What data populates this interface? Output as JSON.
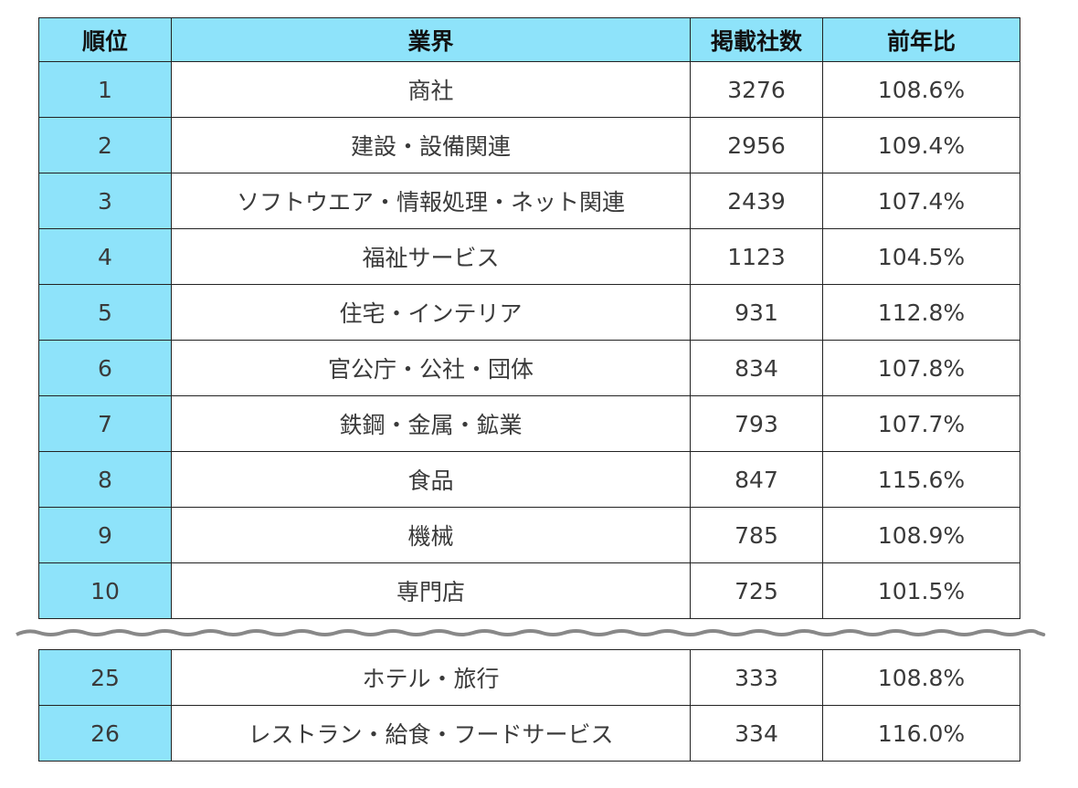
{
  "table": {
    "headers": {
      "rank": "順位",
      "industry": "業界",
      "count": "掲載社数",
      "yoy": "前年比"
    },
    "rows_top": [
      {
        "rank": "1",
        "industry": "商社",
        "count": "3276",
        "yoy": "108.6%"
      },
      {
        "rank": "2",
        "industry": "建設・設備関連",
        "count": "2956",
        "yoy": "109.4%"
      },
      {
        "rank": "3",
        "industry": "ソフトウエア・情報処理・ネット関連",
        "count": "2439",
        "yoy": "107.4%"
      },
      {
        "rank": "4",
        "industry": "福祉サービス",
        "count": "1123",
        "yoy": "104.5%"
      },
      {
        "rank": "5",
        "industry": "住宅・インテリア",
        "count": "931",
        "yoy": "112.8%"
      },
      {
        "rank": "6",
        "industry": "官公庁・公社・団体",
        "count": "834",
        "yoy": "107.8%"
      },
      {
        "rank": "7",
        "industry": "鉄鋼・金属・鉱業",
        "count": "793",
        "yoy": "107.7%"
      },
      {
        "rank": "8",
        "industry": "食品",
        "count": "847",
        "yoy": "115.6%"
      },
      {
        "rank": "9",
        "industry": "機械",
        "count": "785",
        "yoy": "108.9%"
      },
      {
        "rank": "10",
        "industry": "専門店",
        "count": "725",
        "yoy": "101.5%"
      }
    ],
    "rows_bottom": [
      {
        "rank": "25",
        "industry": "ホテル・旅行",
        "count": "333",
        "yoy": "108.8%"
      },
      {
        "rank": "26",
        "industry": "レストラン・給食・フードサービス",
        "count": "334",
        "yoy": "116.0%"
      }
    ]
  },
  "colors": {
    "header_bg": "#8ee3fa",
    "rank_bg": "#8ee3fa",
    "border": "#222222",
    "wave": "#888888"
  }
}
